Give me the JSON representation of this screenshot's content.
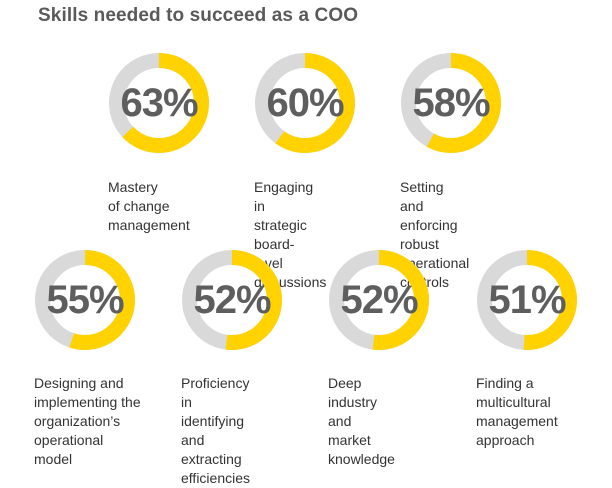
{
  "colors": {
    "accent": "#ffd200",
    "track": "#d9d9d9",
    "title": "#5a5a5a"
  },
  "chart_data": {
    "type": "donut",
    "title": "Skills needed to succeed as a COO",
    "unit": "%",
    "items": [
      {
        "value": 63,
        "display": "63%",
        "label": "Mastery\nof change\nmanagement"
      },
      {
        "value": 60,
        "display": "60%",
        "label": "Engaging in\nstrategic board-\nlevel discussions"
      },
      {
        "value": 58,
        "display": "58%",
        "label": "Setting and\nenforcing robust\noperational controls"
      },
      {
        "value": 55,
        "display": "55%",
        "label": "Designing and\nimplementing the\norganization’s\noperational\nmodel"
      },
      {
        "value": 52,
        "display": "52%",
        "label": "Proficiency\nin identifying\nand extracting\nefficiencies"
      },
      {
        "value": 52,
        "display": "52%",
        "label": "Deep industry\nand market\nknowledge"
      },
      {
        "value": 51,
        "display": "51%",
        "label": "Finding a\nmulticultural\nmanagement\napproach"
      }
    ]
  }
}
